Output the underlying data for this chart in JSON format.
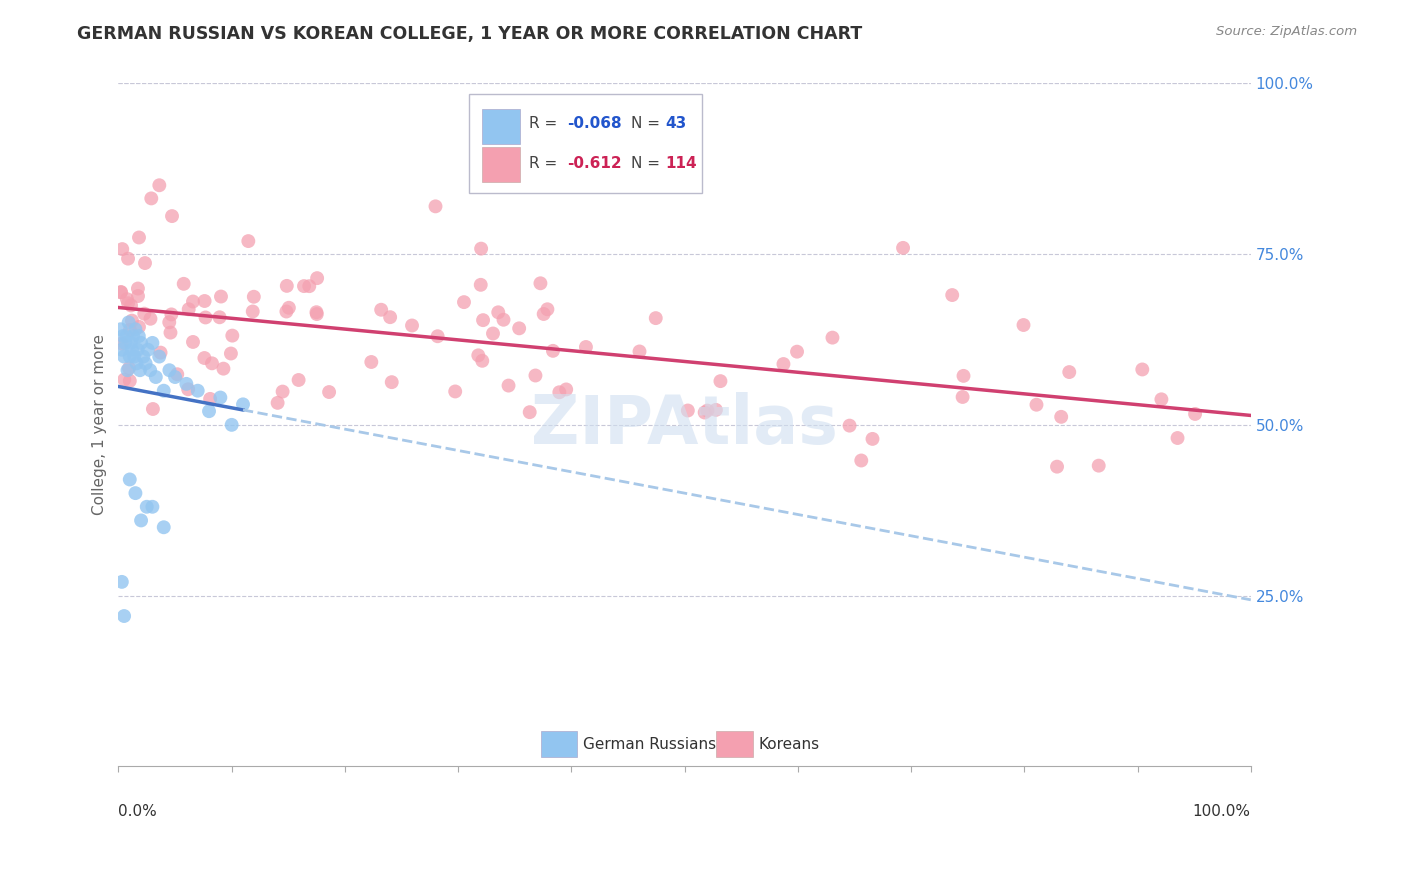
{
  "title": "GERMAN RUSSIAN VS KOREAN COLLEGE, 1 YEAR OR MORE CORRELATION CHART",
  "source": "Source: ZipAtlas.com",
  "ylabel": "College, 1 year or more",
  "right_yticks": [
    "100.0%",
    "75.0%",
    "50.0%",
    "25.0%"
  ],
  "right_ytick_vals": [
    1.0,
    0.75,
    0.5,
    0.25
  ],
  "legend_label_blue": "German Russians",
  "legend_label_pink": "Koreans",
  "color_blue": "#92C5F0",
  "color_pink": "#F4A0B0",
  "color_line_blue": "#4472C4",
  "color_line_pink": "#D04070",
  "color_dashed": "#A8C8E8",
  "watermark": "ZIPAtlas"
}
